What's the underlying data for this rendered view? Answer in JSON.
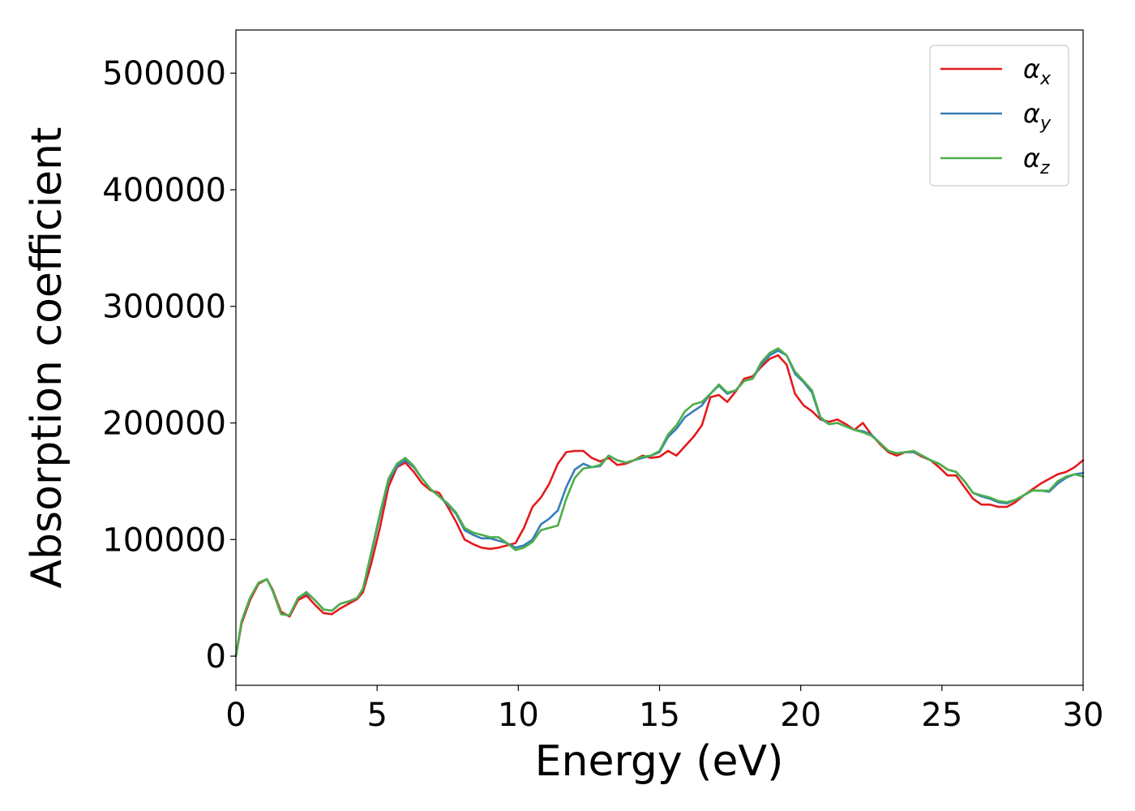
{
  "chart_data": {
    "type": "line",
    "title": "",
    "xlabel": "Energy (eV)",
    "ylabel": "Absorption coefficient",
    "xlim": [
      0,
      30
    ],
    "ylim": [
      -25000,
      537000
    ],
    "xticks": [
      0,
      5,
      10,
      15,
      20,
      25,
      30
    ],
    "xtick_labels": [
      "0",
      "5",
      "10",
      "15",
      "20",
      "25",
      "30"
    ],
    "yticks": [
      0,
      100000,
      200000,
      300000,
      400000,
      500000
    ],
    "ytick_labels": [
      "0",
      "100000",
      "200000",
      "300000",
      "400000",
      "500000"
    ],
    "grid": false,
    "legend_position": "top-right",
    "series": [
      {
        "name": "αx",
        "symbol": "α",
        "subscript": "x",
        "color": "#e41a1c",
        "x": [
          0,
          0.2,
          0.5,
          0.8,
          1.1,
          1.3,
          1.6,
          1.9,
          2.2,
          2.5,
          2.8,
          3.1,
          3.4,
          3.7,
          4.0,
          4.3,
          4.5,
          4.8,
          5.1,
          5.4,
          5.7,
          6.0,
          6.3,
          6.6,
          6.9,
          7.2,
          7.5,
          7.8,
          8.1,
          8.4,
          8.7,
          9.0,
          9.3,
          9.6,
          9.9,
          10.2,
          10.5,
          10.8,
          11.1,
          11.4,
          11.7,
          12.0,
          12.3,
          12.6,
          12.9,
          13.2,
          13.5,
          13.8,
          14.1,
          14.4,
          14.7,
          15.0,
          15.3,
          15.6,
          15.9,
          16.2,
          16.5,
          16.8,
          17.1,
          17.4,
          17.7,
          18.0,
          18.3,
          18.6,
          18.9,
          19.2,
          19.5,
          19.8,
          20.1,
          20.4,
          20.7,
          21.0,
          21.3,
          21.6,
          21.9,
          22.2,
          22.5,
          22.8,
          23.1,
          23.4,
          23.7,
          24.0,
          24.3,
          24.6,
          24.9,
          25.2,
          25.5,
          25.8,
          26.1,
          26.4,
          26.7,
          27.0,
          27.3,
          27.6,
          27.9,
          28.2,
          28.5,
          28.8,
          29.1,
          29.4,
          29.7,
          30.0
        ],
        "y": [
          0,
          28000,
          48000,
          62000,
          66000,
          57000,
          38000,
          34000,
          48000,
          52000,
          44000,
          37000,
          36000,
          41000,
          45000,
          49000,
          55000,
          80000,
          110000,
          145000,
          162000,
          166000,
          158000,
          148000,
          142000,
          140000,
          128000,
          115000,
          100000,
          96000,
          93000,
          92000,
          93000,
          95000,
          97000,
          110000,
          128000,
          136000,
          148000,
          165000,
          175000,
          176000,
          176000,
          170000,
          167000,
          170000,
          164000,
          165000,
          168000,
          172000,
          170000,
          171000,
          176000,
          172000,
          180000,
          188000,
          198000,
          222000,
          224000,
          218000,
          227000,
          238000,
          240000,
          248000,
          255000,
          258000,
          250000,
          225000,
          215000,
          210000,
          203000,
          201000,
          203000,
          199000,
          194000,
          200000,
          190000,
          182000,
          175000,
          172000,
          175000,
          175000,
          171000,
          168000,
          162000,
          155000,
          155000,
          145000,
          135000,
          130000,
          130000,
          128000,
          128000,
          132000,
          138000,
          143000,
          148000,
          152000,
          156000,
          158000,
          162000,
          168000
        ]
      },
      {
        "name": "αy",
        "symbol": "α",
        "subscript": "y",
        "color": "#377eb8",
        "x": [
          0,
          0.2,
          0.5,
          0.8,
          1.1,
          1.3,
          1.6,
          1.9,
          2.2,
          2.5,
          2.8,
          3.1,
          3.4,
          3.7,
          4.0,
          4.3,
          4.5,
          4.8,
          5.1,
          5.4,
          5.7,
          6.0,
          6.3,
          6.6,
          6.9,
          7.2,
          7.5,
          7.8,
          8.1,
          8.4,
          8.7,
          9.0,
          9.3,
          9.6,
          9.9,
          10.2,
          10.5,
          10.8,
          11.1,
          11.4,
          11.7,
          12.0,
          12.3,
          12.6,
          12.9,
          13.2,
          13.5,
          13.8,
          14.1,
          14.4,
          14.7,
          15.0,
          15.3,
          15.6,
          15.9,
          16.2,
          16.5,
          16.8,
          17.1,
          17.4,
          17.7,
          18.0,
          18.3,
          18.6,
          18.9,
          19.2,
          19.5,
          19.8,
          20.1,
          20.4,
          20.7,
          21.0,
          21.3,
          21.6,
          21.9,
          22.2,
          22.5,
          22.8,
          23.1,
          23.4,
          23.7,
          24.0,
          24.3,
          24.6,
          24.9,
          25.2,
          25.5,
          25.8,
          26.1,
          26.4,
          26.7,
          27.0,
          27.3,
          27.6,
          27.9,
          28.2,
          28.5,
          28.8,
          29.1,
          29.4,
          29.7,
          30.0
        ],
        "y": [
          0,
          30000,
          50000,
          63000,
          66000,
          56000,
          36000,
          35000,
          50000,
          54000,
          48000,
          40000,
          39000,
          45000,
          47000,
          50000,
          58000,
          88000,
          120000,
          150000,
          163000,
          168000,
          162000,
          152000,
          143000,
          137000,
          130000,
          122000,
          108000,
          104000,
          101000,
          101000,
          99000,
          97000,
          93000,
          95000,
          100000,
          113000,
          118000,
          125000,
          145000,
          160000,
          165000,
          162000,
          163000,
          172000,
          168000,
          166000,
          168000,
          170000,
          172000,
          175000,
          188000,
          195000,
          205000,
          210000,
          215000,
          225000,
          232000,
          225000,
          228000,
          236000,
          238000,
          250000,
          258000,
          262000,
          258000,
          242000,
          235000,
          226000,
          204000,
          199000,
          200000,
          197000,
          194000,
          193000,
          190000,
          183000,
          176000,
          174000,
          175000,
          175000,
          172000,
          168000,
          165000,
          160000,
          158000,
          150000,
          140000,
          137000,
          135000,
          132000,
          131000,
          134000,
          138000,
          142000,
          142000,
          141000,
          148000,
          153000,
          156000,
          157000
        ]
      },
      {
        "name": "αz",
        "symbol": "α",
        "subscript": "z",
        "color": "#4daf4a",
        "x": [
          0,
          0.2,
          0.5,
          0.8,
          1.1,
          1.3,
          1.6,
          1.9,
          2.2,
          2.5,
          2.8,
          3.1,
          3.4,
          3.7,
          4.0,
          4.3,
          4.5,
          4.8,
          5.1,
          5.4,
          5.7,
          6.0,
          6.3,
          6.6,
          6.9,
          7.2,
          7.5,
          7.8,
          8.1,
          8.4,
          8.7,
          9.0,
          9.3,
          9.6,
          9.9,
          10.2,
          10.5,
          10.8,
          11.1,
          11.4,
          11.7,
          12.0,
          12.3,
          12.6,
          12.9,
          13.2,
          13.5,
          13.8,
          14.1,
          14.4,
          14.7,
          15.0,
          15.3,
          15.6,
          15.9,
          16.2,
          16.5,
          16.8,
          17.1,
          17.4,
          17.7,
          18.0,
          18.3,
          18.6,
          18.9,
          19.2,
          19.5,
          19.8,
          20.1,
          20.4,
          20.7,
          21.0,
          21.3,
          21.6,
          21.9,
          22.2,
          22.5,
          22.8,
          23.1,
          23.4,
          23.7,
          24.0,
          24.3,
          24.6,
          24.9,
          25.2,
          25.5,
          25.8,
          26.1,
          26.4,
          26.7,
          27.0,
          27.3,
          27.6,
          27.9,
          28.2,
          28.5,
          28.8,
          29.1,
          29.4,
          29.7,
          30.0
        ],
        "y": [
          0,
          30000,
          50000,
          63000,
          66000,
          56000,
          36000,
          35000,
          50000,
          55000,
          48000,
          40000,
          39000,
          45000,
          47000,
          50000,
          58000,
          90000,
          122000,
          152000,
          165000,
          170000,
          163000,
          152000,
          143000,
          137000,
          131000,
          123000,
          110000,
          106000,
          104000,
          102000,
          102000,
          97000,
          91000,
          93000,
          98000,
          108000,
          110000,
          112000,
          135000,
          153000,
          161000,
          162000,
          164000,
          172000,
          168000,
          166000,
          168000,
          171000,
          172000,
          176000,
          190000,
          198000,
          210000,
          216000,
          218000,
          225000,
          233000,
          226000,
          228000,
          236000,
          238000,
          252000,
          260000,
          264000,
          258000,
          244000,
          236000,
          228000,
          205000,
          199000,
          200000,
          197000,
          194000,
          192000,
          189000,
          183000,
          176000,
          174000,
          175000,
          176000,
          172000,
          168000,
          165000,
          160000,
          158000,
          150000,
          140000,
          138000,
          136000,
          133000,
          132000,
          134000,
          138000,
          142000,
          142000,
          142000,
          150000,
          154000,
          156000,
          154000
        ]
      }
    ]
  }
}
